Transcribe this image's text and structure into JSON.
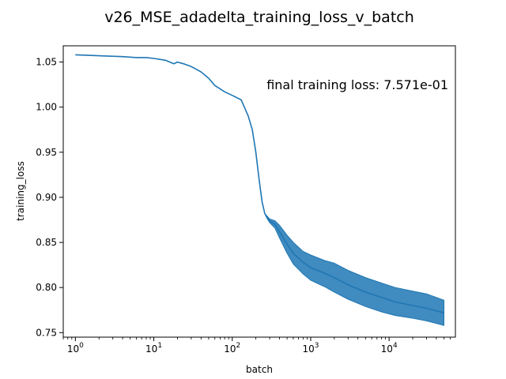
{
  "chart_data": {
    "type": "line",
    "title": "v26_MSE_adadelta_training_loss_v_batch",
    "xlabel": "batch",
    "ylabel": "training_loss",
    "x_scale": "log",
    "xlim": [
      0.7,
      70000
    ],
    "ylim": [
      0.745,
      1.068
    ],
    "x_ticks": [
      {
        "value": 1,
        "base": "10",
        "exp": "0"
      },
      {
        "value": 10,
        "base": "10",
        "exp": "1"
      },
      {
        "value": 100,
        "base": "10",
        "exp": "2"
      },
      {
        "value": 1000,
        "base": "10",
        "exp": "3"
      },
      {
        "value": 10000,
        "base": "10",
        "exp": "4"
      }
    ],
    "y_ticks": [
      "0.75",
      "0.80",
      "0.85",
      "0.90",
      "0.95",
      "1.00",
      "1.05"
    ],
    "annotation": "final training loss: 7.571e-01",
    "line_color": "#1f77b4",
    "grid": false,
    "series": [
      {
        "x": [
          1,
          2,
          4,
          6,
          8,
          10,
          14,
          18,
          20,
          24,
          30,
          40,
          50,
          60,
          80,
          100,
          130,
          160,
          180,
          200,
          220,
          240,
          260,
          280,
          300,
          350,
          400,
          500,
          600,
          800,
          1000,
          1500,
          2000,
          3000,
          5000,
          8000,
          12000,
          20000,
          30000,
          50000
        ],
        "y": [
          1.058,
          1.057,
          1.056,
          1.055,
          1.055,
          1.054,
          1.052,
          1.048,
          1.05,
          1.048,
          1.045,
          1.039,
          1.032,
          1.024,
          1.017,
          1.013,
          1.008,
          0.99,
          0.975,
          0.95,
          0.92,
          0.895,
          0.882,
          0.877,
          0.874,
          0.87,
          0.862,
          0.848,
          0.838,
          0.828,
          0.822,
          0.816,
          0.811,
          0.803,
          0.795,
          0.789,
          0.784,
          0.78,
          0.777,
          0.772
        ],
        "band_low": [
          1.058,
          1.057,
          1.056,
          1.055,
          1.055,
          1.054,
          1.052,
          1.048,
          1.05,
          1.048,
          1.045,
          1.039,
          1.032,
          1.024,
          1.017,
          1.013,
          1.008,
          0.99,
          0.975,
          0.95,
          0.92,
          0.895,
          0.882,
          0.876,
          0.872,
          0.866,
          0.855,
          0.838,
          0.826,
          0.815,
          0.808,
          0.801,
          0.795,
          0.787,
          0.779,
          0.773,
          0.769,
          0.766,
          0.763,
          0.758
        ],
        "band_high": [
          1.058,
          1.057,
          1.056,
          1.055,
          1.055,
          1.054,
          1.052,
          1.048,
          1.05,
          1.048,
          1.045,
          1.039,
          1.032,
          1.024,
          1.017,
          1.013,
          1.008,
          0.99,
          0.975,
          0.95,
          0.92,
          0.895,
          0.882,
          0.879,
          0.876,
          0.874,
          0.869,
          0.858,
          0.85,
          0.84,
          0.836,
          0.83,
          0.827,
          0.819,
          0.811,
          0.805,
          0.8,
          0.796,
          0.793,
          0.786
        ]
      }
    ]
  }
}
